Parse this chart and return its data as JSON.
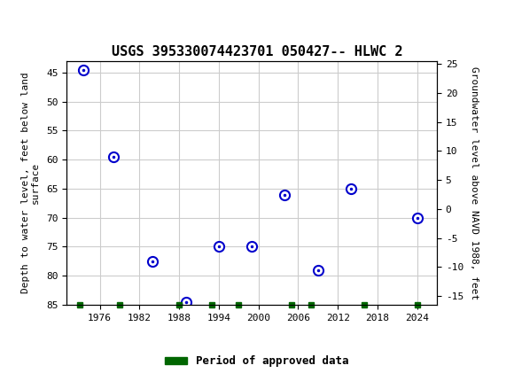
{
  "title": "USGS 395330074423701 050427-- HLWC 2",
  "xlabel_years": [
    1976,
    1982,
    1988,
    1994,
    2000,
    2006,
    2012,
    2018,
    2024
  ],
  "data_x": [
    1973.5,
    1978,
    1984,
    1989,
    1994,
    1999,
    2004,
    2009,
    2014,
    2024
  ],
  "data_y_depth": [
    44.5,
    59.5,
    77.5,
    84.5,
    75,
    75,
    66,
    79,
    65,
    70
  ],
  "approved_x": [
    1973,
    1979,
    1988,
    1993,
    1997,
    2005,
    2008,
    2016,
    2024
  ],
  "ylim_left": [
    85,
    43
  ],
  "ylim_right": [
    -16.5,
    25.5
  ],
  "yticks_left": [
    45,
    50,
    55,
    60,
    65,
    70,
    75,
    80,
    85
  ],
  "yticks_right": [
    25,
    20,
    15,
    10,
    5,
    0,
    -5,
    -10,
    -15
  ],
  "xlim": [
    1971,
    2027
  ],
  "header_color": "#1a6b3c",
  "point_color": "#0000cc",
  "approved_color": "#006600",
  "background_color": "#ffffff",
  "grid_color": "#cccccc",
  "ylabel_left": "Depth to water level, feet below land\nsurface",
  "ylabel_right": "Groundwater level above NAVD 1988, feet",
  "legend_label": "Period of approved data"
}
